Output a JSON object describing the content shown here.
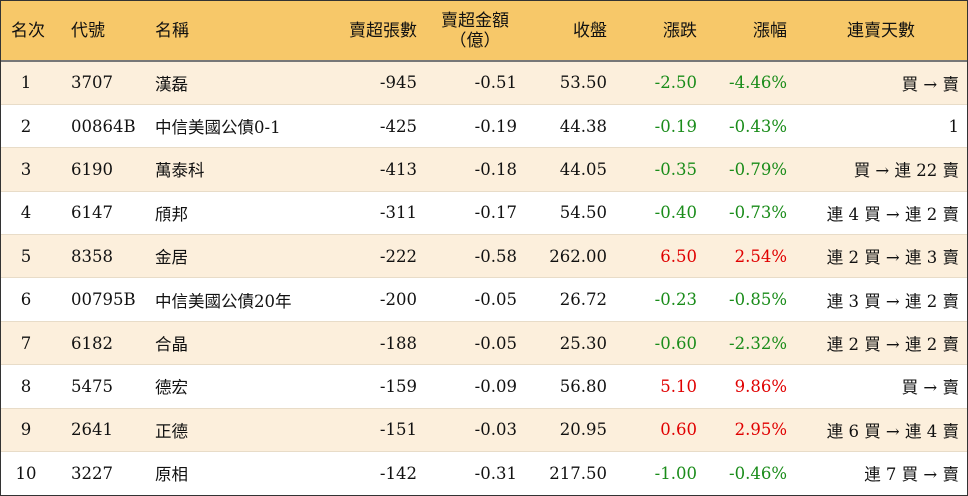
{
  "headers": {
    "rank": "名次",
    "code": "代號",
    "name": "名稱",
    "sell_lots": "賣超張數",
    "sell_amt_line1": "賣超金額",
    "sell_amt_line2": "（億）",
    "close": "收盤",
    "change": "漲跌",
    "pct": "漲幅",
    "streak": "連賣天數"
  },
  "colors": {
    "header_bg": "#f7c869",
    "stripe_bg": "#fcefdc",
    "up": "#e00000",
    "down": "#1a8c1a"
  },
  "rows": [
    {
      "rank": "1",
      "code": "3707",
      "name": "漢磊",
      "sell_lots": "-945",
      "sell_amt": "-0.51",
      "close": "53.50",
      "change": "-2.50",
      "pct": "-4.46%",
      "streak": "買 → 賣",
      "dir": "neg"
    },
    {
      "rank": "2",
      "code": "00864B",
      "name": "中信美國公債0-1",
      "sell_lots": "-425",
      "sell_amt": "-0.19",
      "close": "44.38",
      "change": "-0.19",
      "pct": "-0.43%",
      "streak": "1",
      "dir": "neg"
    },
    {
      "rank": "3",
      "code": "6190",
      "name": "萬泰科",
      "sell_lots": "-413",
      "sell_amt": "-0.18",
      "close": "44.05",
      "change": "-0.35",
      "pct": "-0.79%",
      "streak": "買 → 連 22 賣",
      "dir": "neg"
    },
    {
      "rank": "4",
      "code": "6147",
      "name": "頎邦",
      "sell_lots": "-311",
      "sell_amt": "-0.17",
      "close": "54.50",
      "change": "-0.40",
      "pct": "-0.73%",
      "streak": "連 4 買 → 連 2 賣",
      "dir": "neg"
    },
    {
      "rank": "5",
      "code": "8358",
      "name": "金居",
      "sell_lots": "-222",
      "sell_amt": "-0.58",
      "close": "262.00",
      "change": "6.50",
      "pct": "2.54%",
      "streak": "連 2 買 → 連 3 賣",
      "dir": "pos"
    },
    {
      "rank": "6",
      "code": "00795B",
      "name": "中信美國公債20年",
      "sell_lots": "-200",
      "sell_amt": "-0.05",
      "close": "26.72",
      "change": "-0.23",
      "pct": "-0.85%",
      "streak": "連 3 買 → 連 2 賣",
      "dir": "neg"
    },
    {
      "rank": "7",
      "code": "6182",
      "name": "合晶",
      "sell_lots": "-188",
      "sell_amt": "-0.05",
      "close": "25.30",
      "change": "-0.60",
      "pct": "-2.32%",
      "streak": "連 2 買 → 連 2 賣",
      "dir": "neg"
    },
    {
      "rank": "8",
      "code": "5475",
      "name": "德宏",
      "sell_lots": "-159",
      "sell_amt": "-0.09",
      "close": "56.80",
      "change": "5.10",
      "pct": "9.86%",
      "streak": "買 → 賣",
      "dir": "pos"
    },
    {
      "rank": "9",
      "code": "2641",
      "name": "正德",
      "sell_lots": "-151",
      "sell_amt": "-0.03",
      "close": "20.95",
      "change": "0.60",
      "pct": "2.95%",
      "streak": "連 6 買 → 連 4 賣",
      "dir": "pos"
    },
    {
      "rank": "10",
      "code": "3227",
      "name": "原相",
      "sell_lots": "-142",
      "sell_amt": "-0.31",
      "close": "217.50",
      "change": "-1.00",
      "pct": "-0.46%",
      "streak": "連 7 買 → 賣",
      "dir": "neg"
    }
  ]
}
